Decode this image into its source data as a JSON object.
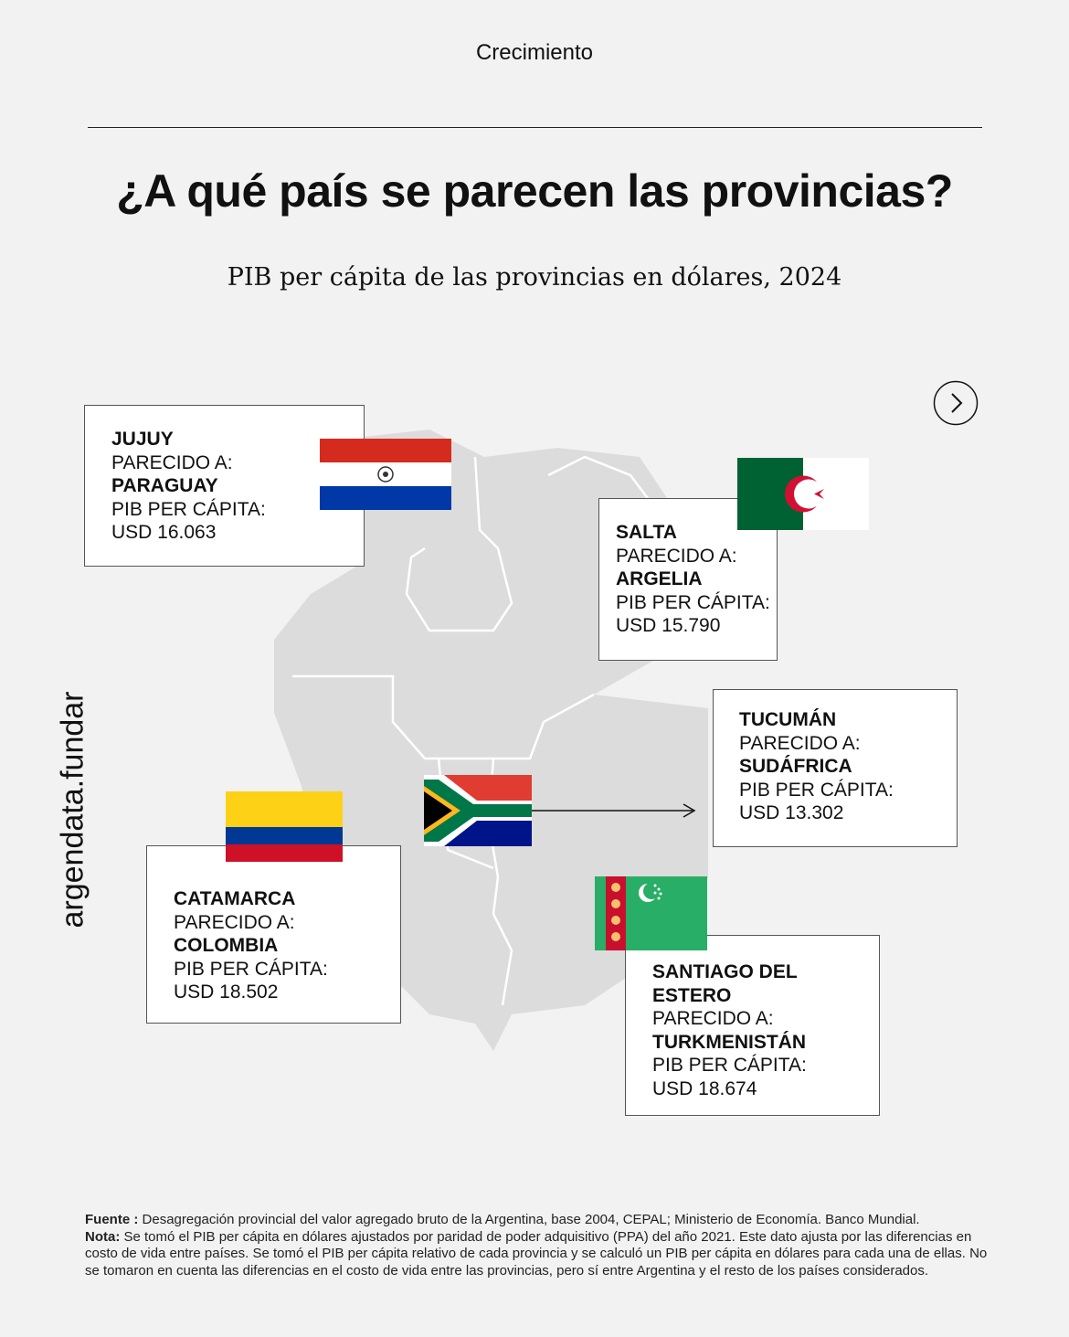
{
  "header": {
    "section": "Crecimiento",
    "title": "¿A qué país se parecen las provincias?",
    "subtitle": "PIB per cápita de las provincias en dólares, 2024"
  },
  "brand": "argendata.fundar",
  "provinces": [
    {
      "name": "JUJUY",
      "similar_label": "PARECIDO A:",
      "country": "PARAGUAY",
      "gdp_label": "PIB PER CÁPITA:",
      "gdp": "USD 16.063"
    },
    {
      "name": "SALTA",
      "similar_label": "PARECIDO A:",
      "country": "ARGELIA",
      "gdp_label": "PIB PER CÁPITA:",
      "gdp": "USD 15.790"
    },
    {
      "name": "TUCUMÁN",
      "similar_label": "PARECIDO A:",
      "country": "SUDÁFRICA",
      "gdp_label": "PIB PER CÁPITA:",
      "gdp": "USD 13.302"
    },
    {
      "name": "CATAMARCA",
      "similar_label": "PARECIDO A:",
      "country": "COLOMBIA",
      "gdp_label": "PIB PER CÁPITA:",
      "gdp": "USD 18.502"
    },
    {
      "name": "SANTIAGO DEL ESTERO",
      "similar_label": "PARECIDO A:",
      "country": "TURKMENISTÁN",
      "gdp_label": "PIB PER CÁPITA:",
      "gdp": "USD 18.674"
    }
  ],
  "footer": {
    "source_label": "Fuente :",
    "source": "Desagregación provincial del valor agregado bruto de la Argentina, base 2004, CEPAL; Ministerio de Economía. Banco Mundial.",
    "note_label": "Nota:",
    "note": "Se tomó el PIB per cápita en dólares ajustados por paridad de poder adquisitivo (PPA) del año 2021. Este dato ajusta por las diferencias en costo de vida entre países. Se tomó el PIB per cápita relativo de cada provincia y se calculó un PIB per cápita en dólares para cada una de ellas. No se tomaron en cuenta las diferencias en el costo de vida entre las provincias, pero sí entre Argentina y el resto de los países considerados."
  }
}
